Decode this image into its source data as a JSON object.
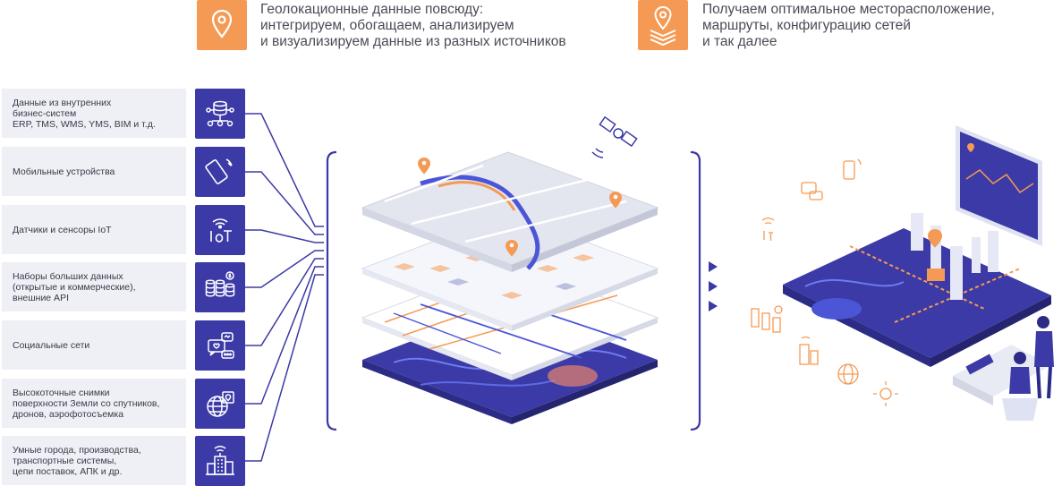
{
  "header": {
    "left": {
      "icon": "location-pin-icon",
      "lines": [
        "Геолокационные данные повсюду:",
        "интегрируем, обогащаем, анализируем",
        "и визуализируем данные из разных источников"
      ]
    },
    "right": {
      "icon": "layered-map-pin-icon",
      "lines": [
        "Получаем оптимальное месторасположение,",
        "маршруты, конфигурацию сетей",
        "и так далее"
      ]
    }
  },
  "sources": [
    {
      "label": "Данные из внутренних\nбизнес-систем\nERP, TMS, WMS, YMS, BIM и т.д.",
      "icon": "database-network-icon"
    },
    {
      "label": "Мобильные устройства",
      "icon": "smartphone-icon"
    },
    {
      "label": "Датчики и сенсоры IoT",
      "icon": "iot-sensor-icon"
    },
    {
      "label": "Наборы больших данных\n(открытые и коммерческие),\nвнешние API",
      "icon": "big-data-icon"
    },
    {
      "label": "Социальные сети",
      "icon": "social-network-icon"
    },
    {
      "label": "Высокоточные снимки\nповерхности Земли со спутников,\nдронов, аэрофотосъемка",
      "icon": "satellite-imagery-icon"
    },
    {
      "label": "Умные города, производства,\nтранспортные системы,\nцепи поставок, АПК и др.",
      "icon": "smart-city-icon"
    }
  ],
  "colors": {
    "accent": "#f59a55",
    "primary": "#3b3aa6",
    "label_bg": "#eef0f6"
  }
}
